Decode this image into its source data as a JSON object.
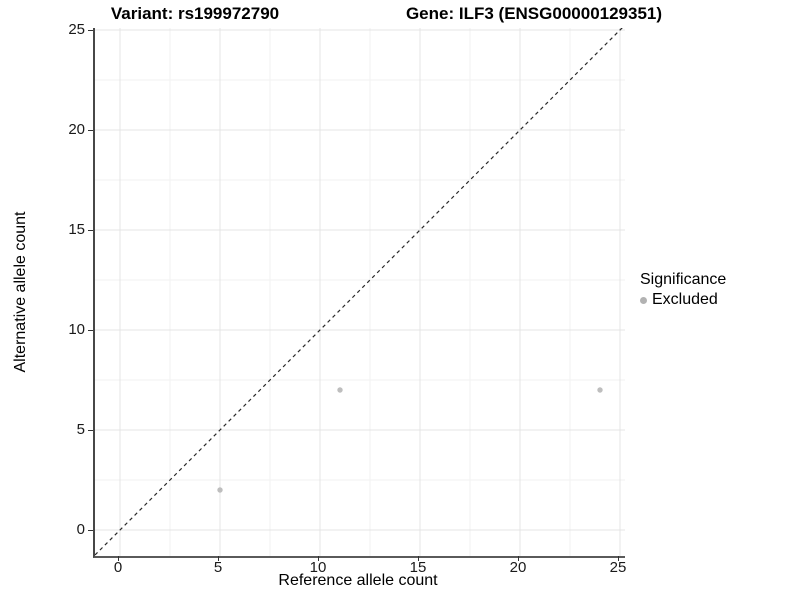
{
  "chart_data": {
    "type": "scatter",
    "title_left": "Variant: rs199972790",
    "title_right": "Gene: ILF3 (ENSG00000129351)",
    "xlabel": "Reference allele count",
    "ylabel": "Alternative allele count",
    "xlim": [
      -1.25,
      25.25
    ],
    "ylim": [
      -1.3,
      25.1
    ],
    "x_ticks": [
      0,
      5,
      10,
      15,
      20,
      25
    ],
    "y_ticks": [
      0,
      5,
      10,
      15,
      20,
      25
    ],
    "minor_grid_step": 2.5,
    "grid": "major+minor",
    "series": [
      {
        "name": "Excluded",
        "points": [
          [
            5,
            2
          ],
          [
            11,
            7
          ],
          [
            24,
            7
          ]
        ],
        "color": "#bebebe"
      }
    ],
    "reference_line": {
      "type": "identity y=x",
      "style": "dashed",
      "color": "#2a2a2a"
    },
    "legend": {
      "title": "Significance",
      "position": "right",
      "entries": [
        {
          "label": "Excluded",
          "color": "#b2b2b2"
        }
      ]
    },
    "style": {
      "grid_major_color": "#e4e4e4",
      "grid_minor_color": "#f2f2f2",
      "axis_line_color": "#4a4a4a",
      "tick_color": "#333333",
      "background": "#ffffff"
    }
  }
}
